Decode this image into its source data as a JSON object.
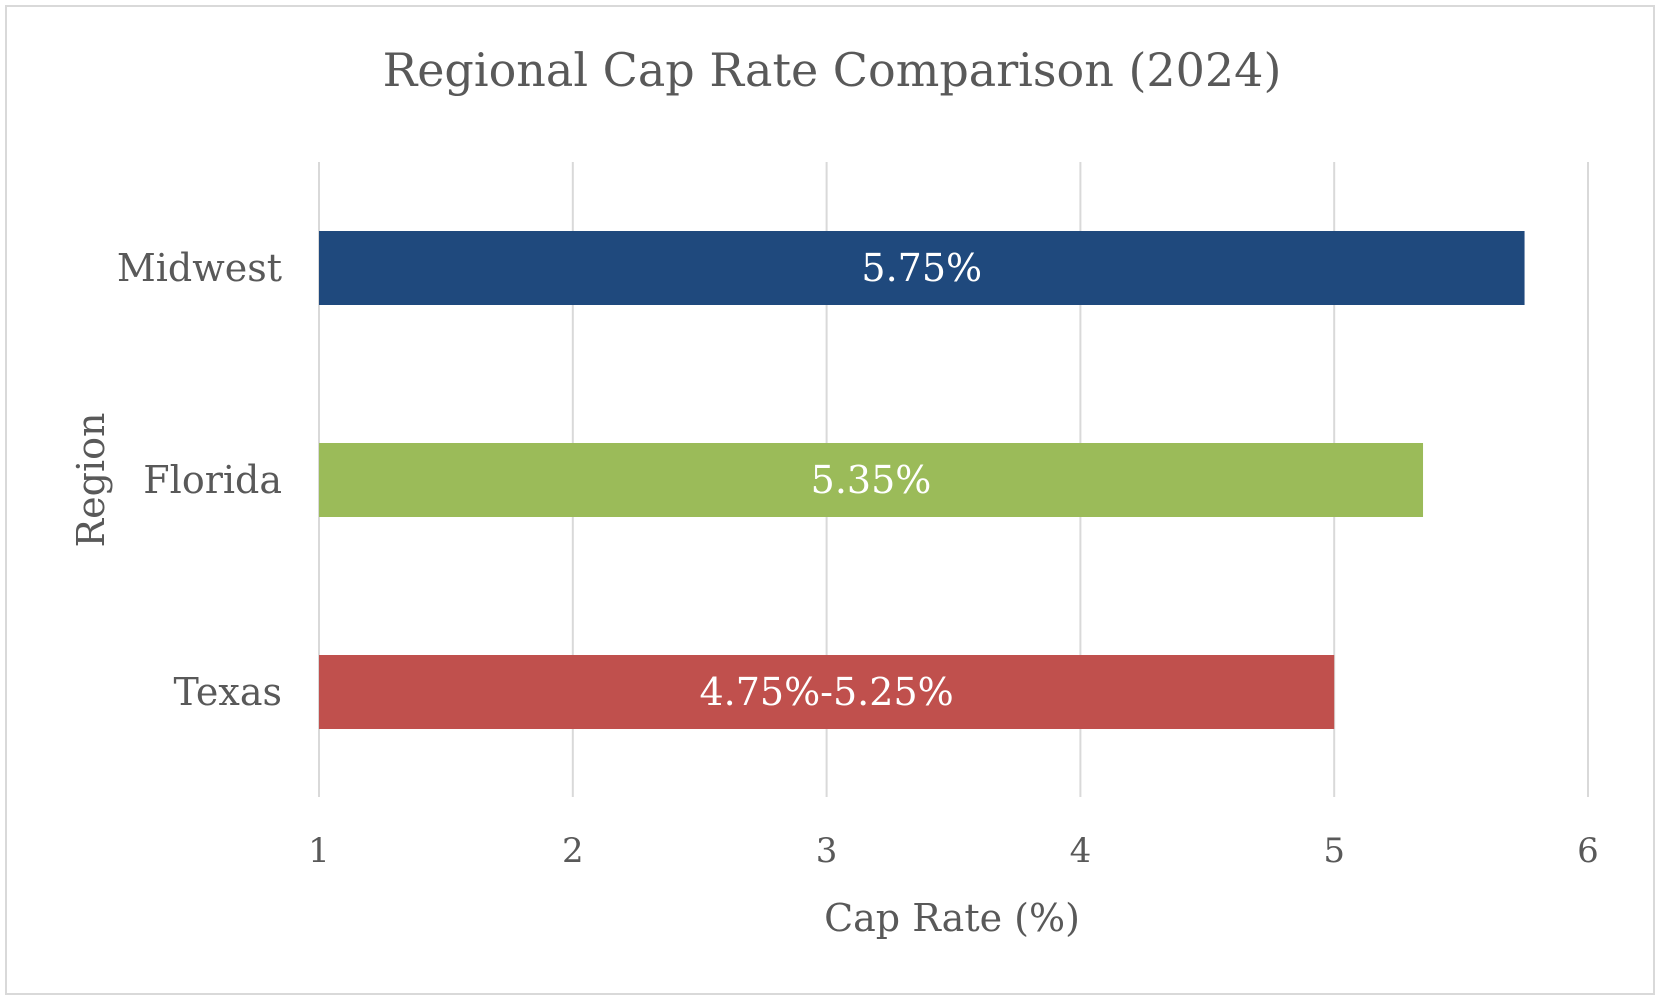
{
  "chart_data": {
    "type": "bar",
    "orientation": "horizontal",
    "title": "Regional Cap Rate Comparison (2024)",
    "xlabel": "Cap Rate (%)",
    "ylabel": "Region",
    "xlim": [
      1,
      6
    ],
    "x_ticks": [
      "1",
      "2",
      "3",
      "4",
      "5",
      "6"
    ],
    "grid": "vertical",
    "categories": [
      "Midwest",
      "Florida",
      "Texas"
    ],
    "values": [
      5.75,
      5.35,
      5.0
    ],
    "data_labels": [
      "5.75%",
      "5.35%",
      "4.75%-5.25%"
    ],
    "colors": [
      "#1f497d",
      "#9bbb59",
      "#c0504d"
    ]
  }
}
